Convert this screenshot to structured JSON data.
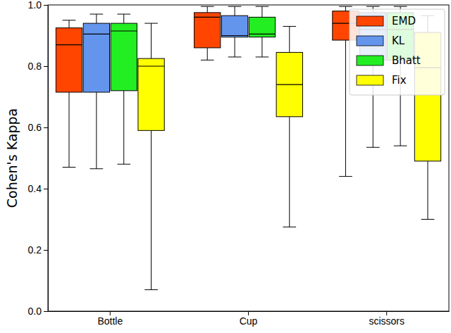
{
  "chart_data": {
    "type": "box",
    "y_label": "Cohen's Kappa",
    "categories": [
      "Bottle",
      "Cup",
      "scissors"
    ],
    "ylim": [
      0,
      1.0
    ],
    "yticks": [
      {
        "value": 0,
        "label": "0.0"
      },
      {
        "value": 0.2,
        "label": "0.2"
      },
      {
        "value": 0.4,
        "label": "0.4"
      },
      {
        "value": 0.6,
        "label": "0.6"
      },
      {
        "value": 0.8,
        "label": "0.8"
      },
      {
        "value": 1.0,
        "label": "1.0"
      }
    ],
    "legend": "upper right",
    "series": [
      {
        "name": "EMD",
        "color": "#ff4500",
        "values": [
          {
            "min": 0.47,
            "q1": 0.715,
            "median": 0.87,
            "q3": 0.925,
            "max": 0.95
          },
          {
            "min": 0.82,
            "q1": 0.86,
            "median": 0.96,
            "q3": 0.975,
            "max": 0.995
          },
          {
            "min": 0.44,
            "q1": 0.885,
            "median": 0.94,
            "q3": 0.98,
            "max": 0.995
          }
        ]
      },
      {
        "name": "KL",
        "color": "#6495ed",
        "values": [
          {
            "min": 0.465,
            "q1": 0.715,
            "median": 0.905,
            "q3": 0.94,
            "max": 0.97
          },
          {
            "min": 0.83,
            "q1": 0.895,
            "median": 0.9,
            "q3": 0.965,
            "max": 0.995
          },
          {
            "min": 0.535,
            "q1": 0.82,
            "median": 0.92,
            "q3": 0.975,
            "max": 0.995
          }
        ]
      },
      {
        "name": "Bhatt",
        "color": "#22ee22",
        "values": [
          {
            "min": 0.48,
            "q1": 0.72,
            "median": 0.915,
            "q3": 0.94,
            "max": 0.97
          },
          {
            "min": 0.83,
            "q1": 0.895,
            "median": 0.905,
            "q3": 0.96,
            "max": 0.995
          },
          {
            "min": 0.54,
            "q1": 0.82,
            "median": 0.92,
            "q3": 0.975,
            "max": 0.995
          }
        ]
      },
      {
        "name": "Fix",
        "color": "#ffff00",
        "values": [
          {
            "min": 0.07,
            "q1": 0.59,
            "median": 0.8,
            "q3": 0.825,
            "max": 0.94
          },
          {
            "min": 0.275,
            "q1": 0.635,
            "median": 0.74,
            "q3": 0.845,
            "max": 0.93
          },
          {
            "min": 0.3,
            "q1": 0.49,
            "median": 0.795,
            "q3": 0.91,
            "max": 0.965
          }
        ]
      }
    ]
  }
}
